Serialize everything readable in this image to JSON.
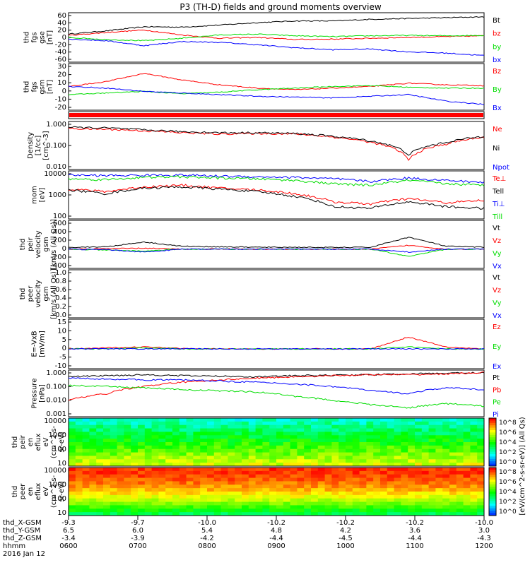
{
  "title": "P3 (TH-D) fields and ground moments overview",
  "colors": {
    "black": "#000000",
    "red": "#ff0000",
    "green": "#00dd00",
    "blue": "#0000ff"
  },
  "chart_data": [
    {
      "id": "fgs_gse",
      "type": "line",
      "ylabel": [
        "thd",
        "fgs",
        "gse",
        "[nT]"
      ],
      "yticks": [
        "60",
        "40",
        "20",
        "0",
        "-20",
        "-40",
        "-60"
      ],
      "ylim": [
        -60,
        60
      ],
      "series": [
        {
          "name": "Bt",
          "color": "black",
          "values": [
            8,
            16,
            26,
            25,
            30,
            36,
            40,
            40,
            44,
            46,
            48,
            50
          ]
        },
        {
          "name": "bz",
          "color": "red",
          "values": [
            5,
            12,
            18,
            6,
            -2,
            0,
            -5,
            -4,
            -2,
            0,
            2,
            4
          ]
        },
        {
          "name": "by",
          "color": "green",
          "values": [
            0,
            -5,
            -8,
            -2,
            6,
            8,
            4,
            2,
            4,
            5,
            4,
            5
          ]
        },
        {
          "name": "bx",
          "color": "blue",
          "values": [
            -4,
            -8,
            -20,
            -10,
            -12,
            -18,
            -25,
            -30,
            -28,
            -35,
            -38,
            -44
          ]
        }
      ]
    },
    {
      "id": "fgs_gsm",
      "type": "line",
      "ylabel": [
        "thd",
        "fgs",
        "gsm",
        "[nT]"
      ],
      "yticks": [
        "30",
        "20",
        "10",
        "0",
        "-10",
        "-20"
      ],
      "ylim": [
        -25,
        32
      ],
      "series": [
        {
          "name": "Bz",
          "color": "red",
          "values": [
            4,
            10,
            20,
            12,
            6,
            2,
            0,
            2,
            4,
            8,
            6,
            5
          ]
        },
        {
          "name": "By",
          "color": "green",
          "values": [
            -6,
            -4,
            -2,
            -5,
            -3,
            0,
            2,
            4,
            5,
            3,
            2,
            2
          ]
        },
        {
          "name": "Bx",
          "color": "blue",
          "values": [
            4,
            2,
            -2,
            -4,
            -6,
            -8,
            -9,
            -10,
            -8,
            -6,
            -14,
            -18
          ]
        }
      ]
    },
    {
      "id": "density",
      "type": "line",
      "ylabel": [
        "Density",
        "[1/cc]",
        "[cm^-3]"
      ],
      "yticks": [
        "1.000",
        "0.100",
        "0.010"
      ],
      "log": true,
      "ylim": [
        0.003,
        1.5
      ],
      "series": [
        {
          "name": "Ne",
          "color": "red",
          "values": [
            0.6,
            0.55,
            0.45,
            0.35,
            0.3,
            0.32,
            0.3,
            0.2,
            0.1,
            0.01,
            0.08,
            0.2
          ]
        },
        {
          "name": "Ni",
          "color": "black",
          "values": [
            0.7,
            0.65,
            0.5,
            0.4,
            0.35,
            0.35,
            0.32,
            0.22,
            0.12,
            0.02,
            0.1,
            0.22
          ]
        },
        {
          "name": "Npot",
          "color": "blue",
          "values": [
            null,
            null,
            null,
            null,
            null,
            null,
            null,
            null,
            null,
            0.004,
            null,
            null
          ]
        }
      ]
    },
    {
      "id": "temperature",
      "type": "line",
      "ylabel": [
        "mom",
        "[eV]"
      ],
      "yticks": [
        "10000",
        "1000",
        "100"
      ],
      "log": true,
      "ylim": [
        80,
        14000
      ],
      "series": [
        {
          "name": "Te⊥",
          "color": "red",
          "values": [
            2000,
            1500,
            2500,
            3000,
            2200,
            1800,
            1200,
            500,
            400,
            700,
            450,
            600
          ]
        },
        {
          "name": "Tell",
          "color": "black",
          "values": [
            1800,
            1200,
            2200,
            2500,
            2000,
            1500,
            900,
            300,
            250,
            500,
            300,
            250
          ]
        },
        {
          "name": "Ti⊥",
          "color": "blue",
          "values": [
            9000,
            8500,
            8800,
            9000,
            8000,
            7500,
            7000,
            6000,
            4500,
            6500,
            5000,
            4000
          ]
        },
        {
          "name": "Till",
          "color": "green",
          "values": [
            6000,
            5500,
            7000,
            7500,
            6500,
            6000,
            5000,
            3500,
            3000,
            5000,
            3500,
            3000
          ]
        }
      ]
    },
    {
      "id": "peir_velocity",
      "type": "line",
      "ylabel": [
        "thd",
        "peir",
        "velocity",
        "gsm",
        "[km/s (All Qs)]"
      ],
      "yticks": [
        "600",
        "400",
        "200",
        "0",
        "-200",
        "-400"
      ],
      "ylim": [
        -400,
        600
      ],
      "series": [
        {
          "name": "Vt",
          "color": "black",
          "values": [
            40,
            50,
            150,
            60,
            50,
            40,
            40,
            35,
            40,
            250,
            60,
            40
          ]
        },
        {
          "name": "Vz",
          "color": "red",
          "values": [
            0,
            10,
            20,
            0,
            5,
            0,
            0,
            0,
            0,
            80,
            0,
            0
          ]
        },
        {
          "name": "Vy",
          "color": "green",
          "values": [
            0,
            -20,
            -40,
            0,
            0,
            0,
            0,
            0,
            0,
            -150,
            0,
            0
          ]
        },
        {
          "name": "Vx",
          "color": "blue",
          "values": [
            0,
            -10,
            -60,
            0,
            0,
            0,
            0,
            0,
            0,
            -60,
            0,
            0
          ]
        }
      ]
    },
    {
      "id": "peer_velocity",
      "type": "line",
      "ylabel": [
        "thd",
        "peer",
        "velocity",
        "gsm",
        "[km/s (All Qs)]"
      ],
      "yticks": [
        "1.0",
        "0.8",
        "0.6",
        "0.4",
        "0.2",
        "0.0"
      ],
      "ylim": [
        0,
        1
      ],
      "series": [
        {
          "name": "Vt",
          "color": "black",
          "values": []
        },
        {
          "name": "Vz",
          "color": "red",
          "values": []
        },
        {
          "name": "Vy",
          "color": "green",
          "values": []
        },
        {
          "name": "Vx",
          "color": "blue",
          "values": []
        }
      ]
    },
    {
      "id": "efield",
      "type": "line",
      "ylabel": [
        "E=-VxB",
        "[mV/m]"
      ],
      "yticks": [
        "15",
        "10",
        "5",
        "0",
        "-5",
        "-10"
      ],
      "ylim": [
        -10,
        15
      ],
      "series": [
        {
          "name": "Ez",
          "color": "red",
          "values": [
            0,
            0.5,
            1,
            0.3,
            0,
            0,
            0,
            0,
            0,
            6,
            1,
            0
          ]
        },
        {
          "name": "Ey",
          "color": "green",
          "values": [
            0,
            0,
            0.5,
            0,
            0,
            0,
            0,
            0,
            0,
            1,
            0,
            0
          ]
        },
        {
          "name": "Ex",
          "color": "blue",
          "values": [
            0,
            0,
            0,
            0,
            0,
            0,
            0,
            0,
            0,
            0,
            0,
            0
          ]
        }
      ]
    },
    {
      "id": "pressure",
      "type": "line",
      "ylabel": [
        "Pressure",
        "[nPa]"
      ],
      "yticks": [
        "1.000",
        "0.100",
        "0.010",
        "0.001"
      ],
      "log": true,
      "ylim": [
        0.0007,
        1.5
      ],
      "series": [
        {
          "name": "Pt",
          "color": "black",
          "values": [
            0.5,
            0.6,
            0.7,
            0.6,
            0.55,
            0.5,
            0.6,
            0.65,
            0.7,
            0.8,
            0.9,
            1.0
          ]
        },
        {
          "name": "Pb",
          "color": "red",
          "values": [
            0.01,
            0.03,
            0.1,
            0.2,
            0.3,
            0.4,
            0.5,
            0.6,
            0.7,
            0.7,
            0.8,
            1.0
          ]
        },
        {
          "name": "Pe",
          "color": "green",
          "values": [
            0.12,
            0.1,
            0.08,
            0.06,
            0.05,
            0.04,
            0.02,
            0.01,
            0.005,
            0.003,
            0.006,
            0.004
          ]
        },
        {
          "name": "Pi",
          "color": "blue",
          "values": [
            0.4,
            0.35,
            0.3,
            0.3,
            0.25,
            0.2,
            0.15,
            0.1,
            0.05,
            0.03,
            0.08,
            0.06
          ]
        }
      ]
    },
    {
      "id": "peir_spec",
      "type": "heatmap",
      "ylabel": [
        "thd",
        "peir",
        "en",
        "eflux",
        "eV",
        "(cm^2-s-",
        "sr-eV)"
      ],
      "yticks": [
        "10000",
        "1000",
        "100",
        "10"
      ],
      "log": true
    },
    {
      "id": "peer_spec",
      "type": "heatmap",
      "ylabel": [
        "thd",
        "peer",
        "en",
        "eflux",
        "eV",
        "(cm^2-s-",
        "sr-eV)"
      ],
      "yticks": [
        "10000",
        "1000",
        "100",
        "10"
      ],
      "log": true
    }
  ],
  "colorbars": [
    {
      "ticks": [
        "10^8",
        "10^6",
        "10^4",
        "10^2",
        "10^0"
      ]
    },
    {
      "ticks": [
        "10^8",
        "10^6",
        "10^4",
        "10^2",
        "10^0"
      ]
    }
  ],
  "colorbar_label": "[eV/(cm^2-s-sr-eV)] (All Qs)",
  "xaxis": {
    "rows": [
      {
        "label": "thd_X-GSM",
        "values": [
          "-9.3",
          "-9.7",
          "-10.0",
          "-10.2",
          "-10.2",
          "-10.2",
          "-10.0"
        ]
      },
      {
        "label": "thd_Y-GSM",
        "values": [
          "6.5",
          "6.0",
          "5.4",
          "4.8",
          "4.2",
          "3.6",
          "3.0"
        ]
      },
      {
        "label": "thd_Z-GSM",
        "values": [
          "-3.4",
          "-3.9",
          "-4.2",
          "-4.4",
          "-4.5",
          "-4.4",
          "-4.3"
        ]
      },
      {
        "label": "hhmm",
        "values": [
          "0600",
          "0700",
          "0800",
          "0900",
          "1000",
          "1100",
          "1200"
        ]
      }
    ],
    "date": "2016 Jan 12"
  }
}
